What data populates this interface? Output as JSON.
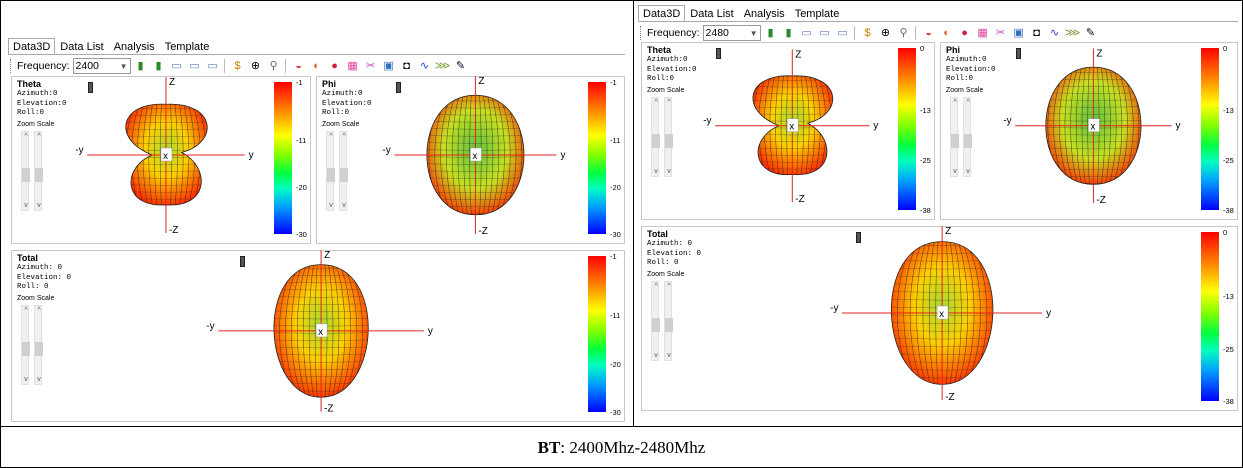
{
  "caption": {
    "bold": "BT",
    "rest": ": 2400Mhz-2480Mhz"
  },
  "tabs": [
    "Data3D",
    "Data List",
    "Analysis",
    "Template"
  ],
  "freq_label": "Frequency:",
  "left": {
    "frequency": "2400",
    "theta": {
      "title": "Theta",
      "info": "Azimuth:0\nElevation:0\nRoll:0",
      "ticks": [
        "-1",
        "-11",
        "-20",
        "-30"
      ]
    },
    "phi": {
      "title": "Phi",
      "info": "Azimuth:0\nElevation:0\nRoll:0",
      "ticks": [
        "-1",
        "-11",
        "-20",
        "-30"
      ]
    },
    "total": {
      "title": "Total",
      "info": "Azimuth: 0\nElevation: 0\nRoll: 0",
      "ticks": [
        "-1",
        "-11",
        "-20",
        "-30"
      ]
    }
  },
  "right": {
    "frequency": "2480",
    "theta": {
      "title": "Theta",
      "info": "Azimuth:0\nElevation:0\nRoll:0",
      "ticks": [
        "0",
        "-13",
        "-25",
        "-38"
      ]
    },
    "phi": {
      "title": "Phi",
      "info": "Azimuth:0\nElevation:0\nRoll:0",
      "ticks": [
        "0",
        "-13",
        "-25",
        "-38"
      ]
    },
    "total": {
      "title": "Total",
      "info": "Azimuth: 0\nElevation: 0\nRoll: 0",
      "ticks": [
        "0",
        "-13",
        "-25",
        "-38"
      ]
    }
  },
  "zoom_label": "Zoom Scale",
  "axis": {
    "z": "Z",
    "neg_z": "-Z",
    "y": "y",
    "neg_y": "-y",
    "x": "x"
  },
  "colors": {
    "hot": "#ff2000",
    "mid": "#ffd000",
    "cool": "#40c040",
    "mesh": "#202020",
    "axis": "#e02020"
  }
}
